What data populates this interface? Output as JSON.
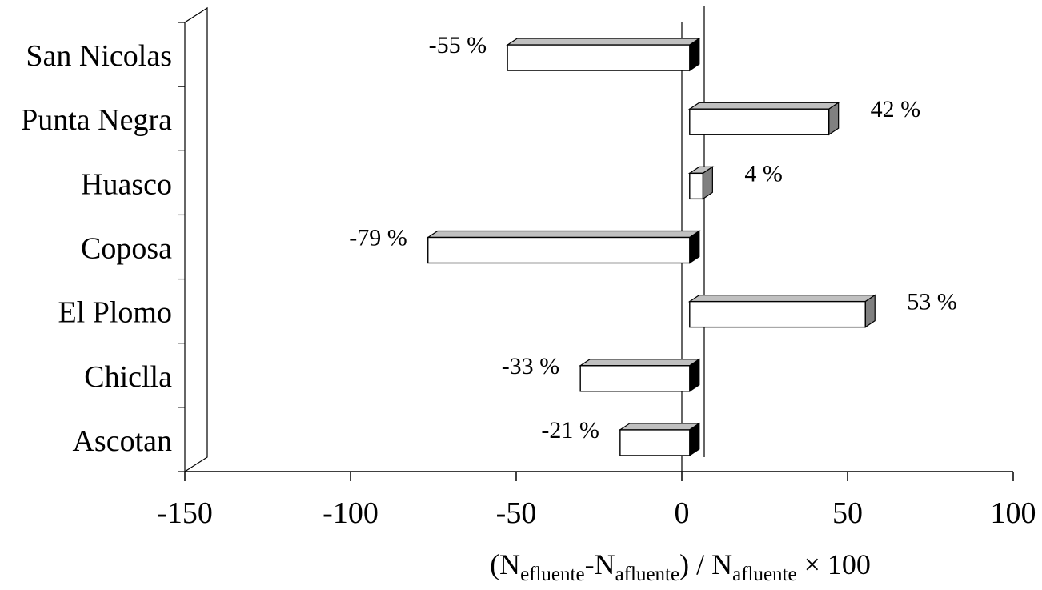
{
  "chart_data": {
    "type": "bar",
    "orientation": "horizontal",
    "categories": [
      "San Nicolas",
      "Punta Negra",
      "Huasco",
      "Coposa",
      "El Plomo",
      "Chiclla",
      "Ascotan"
    ],
    "values": [
      -55,
      42,
      4,
      -79,
      53,
      -33,
      -21
    ],
    "data_labels": [
      "-55 %",
      "42 %",
      "4 %",
      "-79 %",
      "53 %",
      "-33 %",
      "-21 %"
    ],
    "xlim": [
      -150,
      100
    ],
    "xticks": [
      -150,
      -100,
      -50,
      0,
      50,
      100
    ],
    "xtick_labels": [
      "-150",
      "-100",
      "-50",
      "0",
      "50",
      "100"
    ],
    "xlabel_parts": {
      "open": "(N",
      "sub1": "efluente",
      "mid": "-N",
      "sub2": "afluente",
      "close": ") / N",
      "sub3": "afluente",
      "tail": " × 100"
    },
    "title": "",
    "grid": false,
    "legend": "none",
    "colors": {
      "bar_face": "#ffffff",
      "bar_top": "#c0c0c0",
      "bar_side_right": "#808080",
      "bar_side_left": "#000000",
      "axis": "#000000"
    }
  }
}
